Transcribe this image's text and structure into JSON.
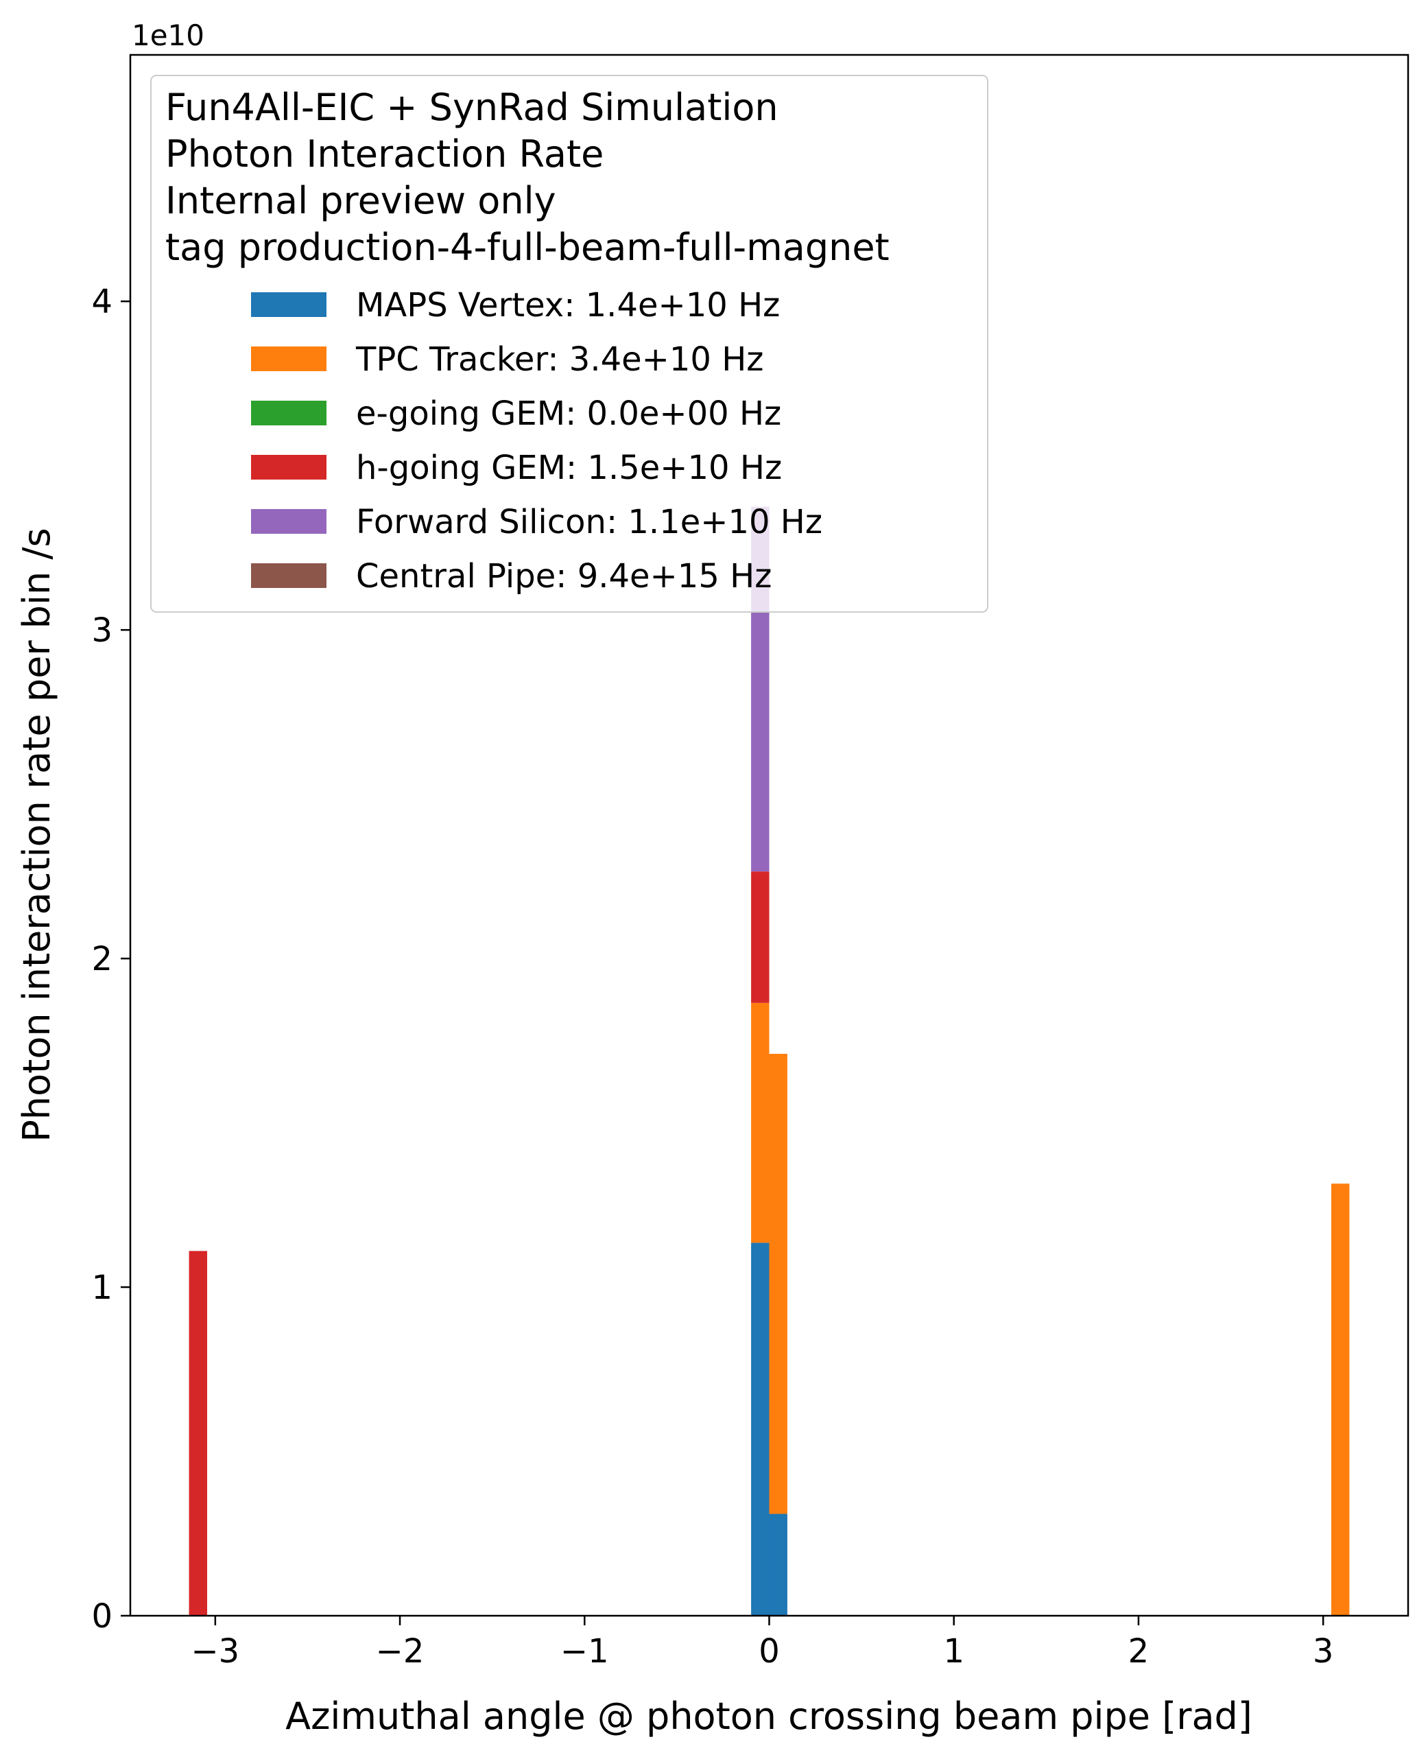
{
  "chart_data": {
    "type": "bar",
    "stacked": true,
    "xlabel": "Azimuthal angle @ photon crossing beam pipe [rad]",
    "ylabel": "Photon interaction rate per bin /s",
    "y_offset_label": "1e10",
    "xlim": [
      -3.46,
      3.46
    ],
    "ylim": [
      0,
      4.75
    ],
    "x_ticks": [
      -3,
      -2,
      -1,
      0,
      1,
      2,
      3
    ],
    "x_tick_labels": [
      "−3",
      "−2",
      "−1",
      "0",
      "1",
      "2",
      "3"
    ],
    "y_ticks": [
      0,
      1,
      2,
      3,
      4
    ],
    "y_tick_labels": [
      "0",
      "1",
      "2",
      "3",
      "4"
    ],
    "grid": false,
    "legend": {
      "placement": "upper-left",
      "title_lines": [
        "Fun4All-EIC + SynRad Simulation",
        "Photon Interaction Rate",
        "Internal preview only",
        "tag production-4-full-beam-full-magnet"
      ]
    },
    "bin_width": 0.0982,
    "series": [
      {
        "name": "MAPS Vertex: 1.4e+10 Hz",
        "color": "#1f77b4",
        "bins": [
          {
            "x": -0.049,
            "value": 1.135
          },
          {
            "x": 0.049,
            "value": 0.31
          }
        ]
      },
      {
        "name": "TPC Tracker: 3.4e+10 Hz",
        "color": "#ff7f0e",
        "bins": [
          {
            "x": -0.049,
            "value": 0.73
          },
          {
            "x": 0.049,
            "value": 1.4
          },
          {
            "x": 3.093,
            "value": 1.315
          }
        ]
      },
      {
        "name": "e-going GEM: 0.0e+00 Hz",
        "color": "#2ca02c",
        "bins": []
      },
      {
        "name": "h-going GEM: 1.5e+10 Hz",
        "color": "#d62728",
        "bins": [
          {
            "x": -3.093,
            "value": 1.11
          },
          {
            "x": -0.049,
            "value": 0.4
          }
        ]
      },
      {
        "name": "Forward Silicon: 1.1e+10 Hz",
        "color": "#9467bd",
        "bins": [
          {
            "x": -0.049,
            "value": 1.11
          }
        ]
      },
      {
        "name": "Central Pipe: 9.4e+15 Hz",
        "color": "#8c564b",
        "bins": []
      }
    ]
  }
}
